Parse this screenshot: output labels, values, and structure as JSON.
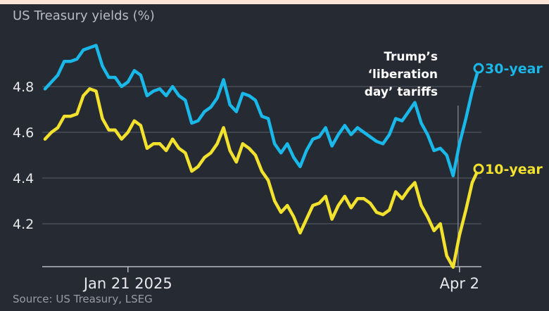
{
  "page": {
    "title": "US Treasury yields (%)",
    "source": "Source: US Treasury, LSEG"
  },
  "chart_data": {
    "type": "line",
    "title": "US Treasury yields (%)",
    "xlabel": "",
    "ylabel": "",
    "ylim": [
      4.0,
      5.0
    ],
    "yticks": [
      4.2,
      4.4,
      4.6,
      4.8
    ],
    "ytick_labels": [
      "4.2",
      "4.4",
      "4.6",
      "4.8"
    ],
    "x_count": 69,
    "xticks": [
      {
        "index": 13,
        "label": "Jan 21 2025"
      },
      {
        "index": 65,
        "label": "Apr 2"
      }
    ],
    "annotation": {
      "lines": [
        "Trump’s",
        "‘liberation",
        "day’ tariffs"
      ],
      "index": 65
    },
    "grid": true,
    "series": [
      {
        "name": "30-year",
        "label": "30-year",
        "color": "#1ab8e8",
        "values": [
          4.79,
          4.82,
          4.85,
          4.91,
          4.91,
          4.92,
          4.96,
          4.97,
          4.98,
          4.89,
          4.84,
          4.84,
          4.8,
          4.82,
          4.87,
          4.85,
          4.76,
          4.78,
          4.79,
          4.76,
          4.8,
          4.76,
          4.74,
          4.64,
          4.65,
          4.69,
          4.71,
          4.75,
          4.83,
          4.72,
          4.69,
          4.77,
          4.76,
          4.74,
          4.67,
          4.66,
          4.55,
          4.51,
          4.55,
          4.49,
          4.45,
          4.52,
          4.57,
          4.58,
          4.62,
          4.54,
          4.59,
          4.63,
          4.59,
          4.62,
          4.6,
          4.58,
          4.56,
          4.55,
          4.59,
          4.66,
          4.65,
          4.69,
          4.73,
          4.64,
          4.59,
          4.52,
          4.53,
          4.5,
          4.41,
          4.55,
          4.66,
          4.78,
          4.88
        ]
      },
      {
        "name": "10-year",
        "label": "10-year",
        "color": "#f2e22e",
        "values": [
          4.57,
          4.6,
          4.62,
          4.67,
          4.67,
          4.68,
          4.76,
          4.79,
          4.78,
          4.66,
          4.61,
          4.61,
          4.57,
          4.6,
          4.65,
          4.63,
          4.53,
          4.55,
          4.55,
          4.52,
          4.57,
          4.53,
          4.51,
          4.43,
          4.45,
          4.49,
          4.51,
          4.55,
          4.62,
          4.52,
          4.47,
          4.55,
          4.53,
          4.5,
          4.43,
          4.39,
          4.3,
          4.25,
          4.28,
          4.23,
          4.16,
          4.22,
          4.28,
          4.29,
          4.32,
          4.22,
          4.28,
          4.32,
          4.27,
          4.31,
          4.31,
          4.29,
          4.25,
          4.24,
          4.26,
          4.34,
          4.31,
          4.35,
          4.38,
          4.28,
          4.23,
          4.17,
          4.2,
          4.06,
          4.01,
          4.15,
          4.26,
          4.38,
          4.44
        ]
      }
    ]
  }
}
